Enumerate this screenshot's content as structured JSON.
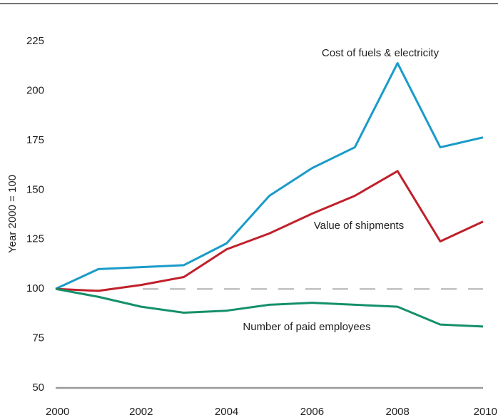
{
  "chart_data": {
    "type": "line",
    "y_label": "Year 2000 = 100",
    "x": [
      2000,
      2001,
      2002,
      2003,
      2004,
      2005,
      2006,
      2007,
      2008,
      2009,
      2010
    ],
    "series": [
      {
        "name": "Cost of fuels & electricity",
        "color": "#1a9bc9",
        "values": [
          100,
          110,
          111,
          112,
          123,
          147,
          161,
          171.5,
          214,
          171.5,
          176.5
        ]
      },
      {
        "name": "Value of shipments",
        "color": "#c0202a",
        "values": [
          100,
          99,
          102,
          106,
          120,
          128,
          138,
          147,
          159.5,
          124,
          134
        ]
      },
      {
        "name": "Number of paid employees",
        "color": "#14906a",
        "values": [
          100,
          96,
          91,
          88,
          89,
          92,
          93,
          92,
          91,
          82,
          81
        ]
      }
    ],
    "reference_line": 100,
    "xlim": [
      2000,
      2010
    ],
    "xticks": [
      2000,
      2002,
      2004,
      2006,
      2008,
      2010
    ],
    "ylim": [
      50,
      225
    ],
    "yticks": [
      50,
      75,
      100,
      125,
      150,
      175,
      200,
      225
    ]
  }
}
